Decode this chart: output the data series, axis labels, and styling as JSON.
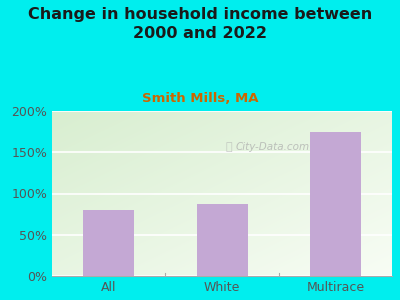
{
  "title": "Change in household income between\n2000 and 2022",
  "subtitle": "Smith Mills, MA",
  "categories": [
    "All",
    "White",
    "Multirace"
  ],
  "values": [
    80,
    87,
    175
  ],
  "bar_color": "#C4A8D4",
  "background_color": "#00EEEE",
  "plot_bg_color_top_left": "#D8EED0",
  "plot_bg_color_bottom_right": "#F8FDF5",
  "title_fontsize": 11.5,
  "title_color": "#1a1a1a",
  "subtitle_fontsize": 9.5,
  "subtitle_color": "#CC6600",
  "tick_color": "#555555",
  "ylim": [
    0,
    200
  ],
  "yticks": [
    0,
    50,
    100,
    150,
    200
  ],
  "ytick_labels": [
    "0%",
    "50%",
    "100%",
    "150%",
    "200%"
  ],
  "watermark": "City-Data.com",
  "grid_color": "#cccccc"
}
